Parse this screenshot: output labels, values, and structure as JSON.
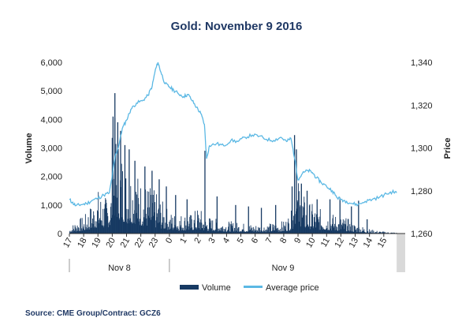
{
  "chart_data": {
    "type": "bar+line",
    "title": "Gold: November 9 2016",
    "source": "Source: CME Group/Contract: GCZ6",
    "y_left": {
      "label": "Volume",
      "min": 0,
      "max": 6000,
      "ticks": [
        "0",
        "1,000",
        "2,000",
        "3,000",
        "4,000",
        "5,000",
        "6,000"
      ],
      "values": [
        0,
        1000,
        2000,
        3000,
        4000,
        5000,
        6000
      ]
    },
    "y_right": {
      "label": "Price",
      "min": 1260,
      "max": 1340,
      "ticks": [
        "1,260",
        "1,280",
        "1,300",
        "1,320",
        "1,340"
      ],
      "values": [
        1260,
        1280,
        1300,
        1320,
        1340
      ]
    },
    "x_ticks": [
      "17",
      "18",
      "19",
      "20",
      "21",
      "22",
      "23",
      "0",
      "1",
      "2",
      "3",
      "4",
      "5",
      "6",
      "7",
      "8",
      "9",
      "10",
      "11",
      "12",
      "13",
      "14",
      "15"
    ],
    "x_tick_hours": [
      17,
      18,
      19,
      20,
      21,
      22,
      23,
      24,
      25,
      26,
      27,
      28,
      29,
      30,
      31,
      32,
      33,
      34,
      35,
      36,
      37,
      38,
      39
    ],
    "x_range_hours": [
      17,
      40.5
    ],
    "day_groups": [
      {
        "label": "Nov 8",
        "start": 17,
        "end": 24
      },
      {
        "label": "Nov 9",
        "start": 24,
        "end": 39.9
      }
    ],
    "shaded_region": {
      "start": 39.9,
      "end": 40.5
    },
    "grid": false,
    "legend_position": "bottom",
    "series": [
      {
        "name": "Volume",
        "type": "bar",
        "axis": "left",
        "color": "#173a63",
        "hour_profile": [
          [
            17.0,
            120
          ],
          [
            17.5,
            300
          ],
          [
            18.0,
            350
          ],
          [
            18.5,
            600
          ],
          [
            19.0,
            900
          ],
          [
            19.5,
            750
          ],
          [
            19.9,
            1000
          ],
          [
            20.0,
            2600
          ],
          [
            20.2,
            2300
          ],
          [
            20.5,
            1900
          ],
          [
            21.0,
            1400
          ],
          [
            21.5,
            1400
          ],
          [
            22.0,
            1100
          ],
          [
            22.5,
            1000
          ],
          [
            23.0,
            850
          ],
          [
            23.5,
            650
          ],
          [
            24.0,
            450
          ],
          [
            24.5,
            400
          ],
          [
            25.0,
            420
          ],
          [
            25.5,
            400
          ],
          [
            26.0,
            550
          ],
          [
            26.5,
            380
          ],
          [
            27.0,
            320
          ],
          [
            28.0,
            260
          ],
          [
            29.0,
            220
          ],
          [
            30.0,
            190
          ],
          [
            31.0,
            210
          ],
          [
            32.0,
            260
          ],
          [
            32.6,
            500
          ],
          [
            32.8,
            1300
          ],
          [
            33.0,
            1100
          ],
          [
            33.5,
            700
          ],
          [
            34.0,
            600
          ],
          [
            34.5,
            500
          ],
          [
            35.0,
            450
          ],
          [
            35.5,
            400
          ],
          [
            36.0,
            350
          ],
          [
            36.5,
            300
          ],
          [
            37.0,
            200
          ],
          [
            37.5,
            150
          ],
          [
            38.0,
            90
          ],
          [
            38.5,
            60
          ],
          [
            39.0,
            40
          ],
          [
            39.9,
            20
          ]
        ],
        "spikes": [
          [
            20.02,
            4100
          ],
          [
            20.15,
            4920
          ],
          [
            20.35,
            3900
          ],
          [
            20.55,
            3600
          ],
          [
            20.85,
            3100
          ],
          [
            21.15,
            2950
          ],
          [
            21.55,
            2550
          ],
          [
            22.25,
            2350
          ],
          [
            22.75,
            2200
          ],
          [
            23.25,
            1900
          ],
          [
            23.75,
            1650
          ],
          [
            24.4,
            1350
          ],
          [
            25.2,
            1200
          ],
          [
            26.45,
            2900
          ],
          [
            27.3,
            1300
          ],
          [
            28.6,
            1000
          ],
          [
            29.5,
            950
          ],
          [
            30.4,
            900
          ],
          [
            31.4,
            1000
          ],
          [
            32.55,
            1650
          ],
          [
            32.72,
            3450
          ],
          [
            32.85,
            2950
          ],
          [
            33.2,
            1750
          ],
          [
            33.6,
            1500
          ],
          [
            34.3,
            1200
          ],
          [
            35.2,
            1200
          ],
          [
            35.9,
            1250
          ],
          [
            36.7,
            950
          ],
          [
            37.2,
            1150
          ],
          [
            37.8,
            500
          ]
        ]
      },
      {
        "name": "Average price",
        "type": "line",
        "axis": "right",
        "color": "#5bb8e4",
        "points": [
          [
            17.0,
            1276.0
          ],
          [
            17.2,
            1274.5
          ],
          [
            17.45,
            1273.0
          ],
          [
            17.8,
            1273.5
          ],
          [
            18.2,
            1274.0
          ],
          [
            18.6,
            1275.5
          ],
          [
            19.0,
            1276.5
          ],
          [
            19.4,
            1278.0
          ],
          [
            19.8,
            1279.0
          ],
          [
            20.0,
            1287.0
          ],
          [
            20.2,
            1296.0
          ],
          [
            20.45,
            1301.0
          ],
          [
            20.7,
            1309.0
          ],
          [
            21.0,
            1313.0
          ],
          [
            21.3,
            1318.0
          ],
          [
            21.7,
            1321.0
          ],
          [
            22.1,
            1322.0
          ],
          [
            22.5,
            1324.5
          ],
          [
            22.8,
            1329.0
          ],
          [
            23.0,
            1336.0
          ],
          [
            23.2,
            1340.0
          ],
          [
            23.4,
            1335.5
          ],
          [
            23.7,
            1330.0
          ],
          [
            24.0,
            1328.5
          ],
          [
            24.3,
            1327.0
          ],
          [
            24.6,
            1325.5
          ],
          [
            25.0,
            1324.0
          ],
          [
            25.3,
            1325.0
          ],
          [
            25.6,
            1322.0
          ],
          [
            25.9,
            1319.0
          ],
          [
            26.2,
            1316.0
          ],
          [
            26.45,
            1311.0
          ],
          [
            26.6,
            1295.0
          ],
          [
            26.8,
            1301.0
          ],
          [
            27.3,
            1302.0
          ],
          [
            27.8,
            1301.0
          ],
          [
            28.3,
            1303.5
          ],
          [
            28.8,
            1303.0
          ],
          [
            29.3,
            1305.0
          ],
          [
            29.8,
            1306.0
          ],
          [
            30.3,
            1305.5
          ],
          [
            30.8,
            1304.0
          ],
          [
            31.3,
            1303.5
          ],
          [
            31.8,
            1305.0
          ],
          [
            32.2,
            1303.0
          ],
          [
            32.5,
            1304.5
          ],
          [
            32.8,
            1294.0
          ],
          [
            33.0,
            1285.0
          ],
          [
            33.3,
            1288.0
          ],
          [
            33.7,
            1289.5
          ],
          [
            34.0,
            1288.5
          ],
          [
            34.3,
            1286.0
          ],
          [
            34.6,
            1284.0
          ],
          [
            35.0,
            1282.0
          ],
          [
            35.4,
            1280.0
          ],
          [
            35.7,
            1277.0
          ],
          [
            36.0,
            1276.0
          ],
          [
            36.4,
            1275.0
          ],
          [
            36.8,
            1274.0
          ],
          [
            37.2,
            1273.5
          ],
          [
            37.7,
            1275.0
          ],
          [
            38.2,
            1276.0
          ],
          [
            38.7,
            1277.0
          ],
          [
            39.2,
            1278.5
          ],
          [
            39.6,
            1279.5
          ],
          [
            39.9,
            1279.0
          ]
        ]
      }
    ]
  }
}
